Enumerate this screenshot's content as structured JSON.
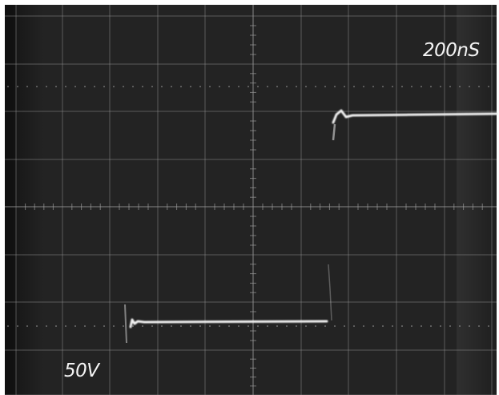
{
  "photo": {
    "subject": "oscilloscope-screen",
    "colors": {
      "screen": "#232323",
      "screen_dark": "#141414",
      "side_band": "#2e2e2e",
      "grid": "#8a8a8a",
      "trace": "#f2f2f2"
    }
  },
  "readout": {
    "timebase": "200nS",
    "volts_per_div": "50V"
  }
}
